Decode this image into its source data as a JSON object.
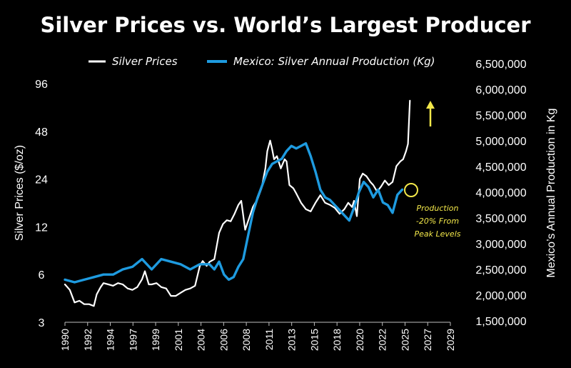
{
  "chart_data": {
    "type": "line",
    "title": "Silver Prices vs. World’s Largest Producer",
    "ylabel_left": "Silver Prices ($/oz)",
    "ylabel_right": "Mexico’s Annual Production in Kg",
    "left_axis": {
      "scale": "log2",
      "ticks": [
        3,
        6,
        12,
        24,
        48,
        96
      ],
      "tick_labels": [
        "3",
        "6",
        "12",
        "24",
        "48",
        "96"
      ],
      "ylim": [
        3,
        96
      ]
    },
    "right_axis": {
      "scale": "linear",
      "ticks": [
        1500000,
        2000000,
        2500000,
        3000000,
        3500000,
        4000000,
        4500000,
        5000000,
        5500000,
        6000000,
        6500000
      ],
      "tick_labels": [
        "1,500,000",
        "2,000,000",
        "2,500,000",
        "3,000,000",
        "3,500,000",
        "4,000,000",
        "4,500,000",
        "5,000,000",
        "5,500,000",
        "6,000,000",
        "6,500,000"
      ],
      "ylim": [
        1500000,
        6500000
      ]
    },
    "x_axis": {
      "tick_labels": [
        "1990",
        "1992",
        "1994",
        "1997",
        "1999",
        "2001",
        "2004",
        "2006",
        "2008",
        "2011",
        "2013",
        "2015",
        "2018",
        "2020",
        "2022",
        "2025",
        "2027",
        "2029"
      ],
      "xlim": [
        1990,
        2030
      ]
    },
    "grid": false,
    "legend_position": "top",
    "series": [
      {
        "name": "Silver Prices",
        "color": "#ffffff",
        "axis": "left",
        "x": [
          1990,
          1990.5,
          1991,
          1991.5,
          1992,
          1992.5,
          1993,
          1993.3,
          1993.7,
          1994,
          1994.5,
          1995,
          1995.5,
          1996,
          1996.5,
          1997,
          1997.5,
          1998,
          1998.3,
          1998.7,
          1999,
          1999.5,
          2000,
          2000.5,
          2001,
          2001.5,
          2002,
          2002.5,
          2003,
          2003.5,
          2004,
          2004.3,
          2004.7,
          2005,
          2005.5,
          2006,
          2006.4,
          2006.8,
          2007.2,
          2007.6,
          2008,
          2008.3,
          2008.7,
          2009,
          2009.5,
          2010,
          2010.4,
          2010.8,
          2011,
          2011.3,
          2011.5,
          2011.7,
          2012,
          2012.4,
          2012.8,
          2013,
          2013.3,
          2013.7,
          2014,
          2014.5,
          2015,
          2015.5,
          2016,
          2016.5,
          2017,
          2017.5,
          2018,
          2018.5,
          2019,
          2019.4,
          2019.8,
          2020,
          2020.3,
          2020.6,
          2020.9,
          2021.3,
          2021.7,
          2022,
          2022.4,
          2022.8,
          2023.2,
          2023.6,
          2024,
          2024.4,
          2024.8,
          2025.1,
          2025.4,
          2025.6,
          2025.8
        ],
        "values": [
          5.2,
          4.8,
          4.0,
          4.1,
          3.9,
          3.9,
          3.8,
          4.5,
          5.0,
          5.3,
          5.2,
          5.1,
          5.3,
          5.2,
          4.9,
          4.8,
          5.0,
          5.6,
          6.3,
          5.2,
          5.2,
          5.3,
          5.0,
          4.9,
          4.4,
          4.4,
          4.6,
          4.8,
          4.9,
          5.1,
          6.8,
          7.3,
          6.8,
          7.2,
          7.5,
          11.0,
          12.5,
          13.2,
          13.0,
          14.5,
          16.5,
          17.5,
          11.5,
          13.0,
          16.0,
          18.0,
          21.0,
          28.0,
          36.0,
          42.0,
          37.0,
          32.0,
          33.5,
          28.0,
          32.0,
          31.0,
          22.0,
          21.0,
          19.5,
          17.0,
          15.5,
          15.0,
          17.0,
          19.0,
          17.0,
          16.5,
          15.8,
          14.5,
          15.5,
          17.0,
          16.0,
          17.5,
          14.0,
          24.0,
          26.0,
          25.0,
          23.0,
          22.0,
          20.0,
          21.5,
          23.5,
          22.0,
          23.0,
          29.0,
          31.0,
          32.0,
          36.0,
          40.0,
          75.0
        ]
      },
      {
        "name": "Mexico: Silver Annual Production (Kg)",
        "color": "#1e9be0",
        "axis": "right",
        "x": [
          1990,
          1991,
          1992,
          1993,
          1994,
          1995,
          1996,
          1997,
          1998,
          1999,
          2000,
          2001,
          2002,
          2003,
          2004,
          2005,
          2005.5,
          2006,
          2006.5,
          2007,
          2007.5,
          2008,
          2008.5,
          2009,
          2009.5,
          2010,
          2010.5,
          2011,
          2011.5,
          2012,
          2012.5,
          2013,
          2013.5,
          2014,
          2014.5,
          2015,
          2015.5,
          2016,
          2016.5,
          2017,
          2017.5,
          2018,
          2018.5,
          2019,
          2019.5,
          2020,
          2020.5,
          2021,
          2021.5,
          2022,
          2022.5,
          2023,
          2023.5,
          2024,
          2024.5,
          2025
        ],
        "values": [
          2300000,
          2250000,
          2300000,
          2350000,
          2400000,
          2400000,
          2500000,
          2550000,
          2700000,
          2500000,
          2700000,
          2650000,
          2600000,
          2500000,
          2600000,
          2600000,
          2500000,
          2650000,
          2400000,
          2300000,
          2350000,
          2550000,
          2700000,
          3150000,
          3600000,
          3900000,
          4150000,
          4400000,
          4550000,
          4600000,
          4650000,
          4800000,
          4900000,
          4850000,
          4900000,
          4950000,
          4700000,
          4400000,
          4050000,
          3900000,
          3850000,
          3750000,
          3650000,
          3550000,
          3450000,
          3700000,
          4000000,
          4200000,
          4100000,
          3900000,
          4050000,
          3800000,
          3750000,
          3600000,
          3950000,
          4050000
        ]
      }
    ],
    "annotation": {
      "lines": [
        "Production",
        "-20% From",
        "Peak Levels"
      ],
      "color": "#f3e84a"
    }
  }
}
